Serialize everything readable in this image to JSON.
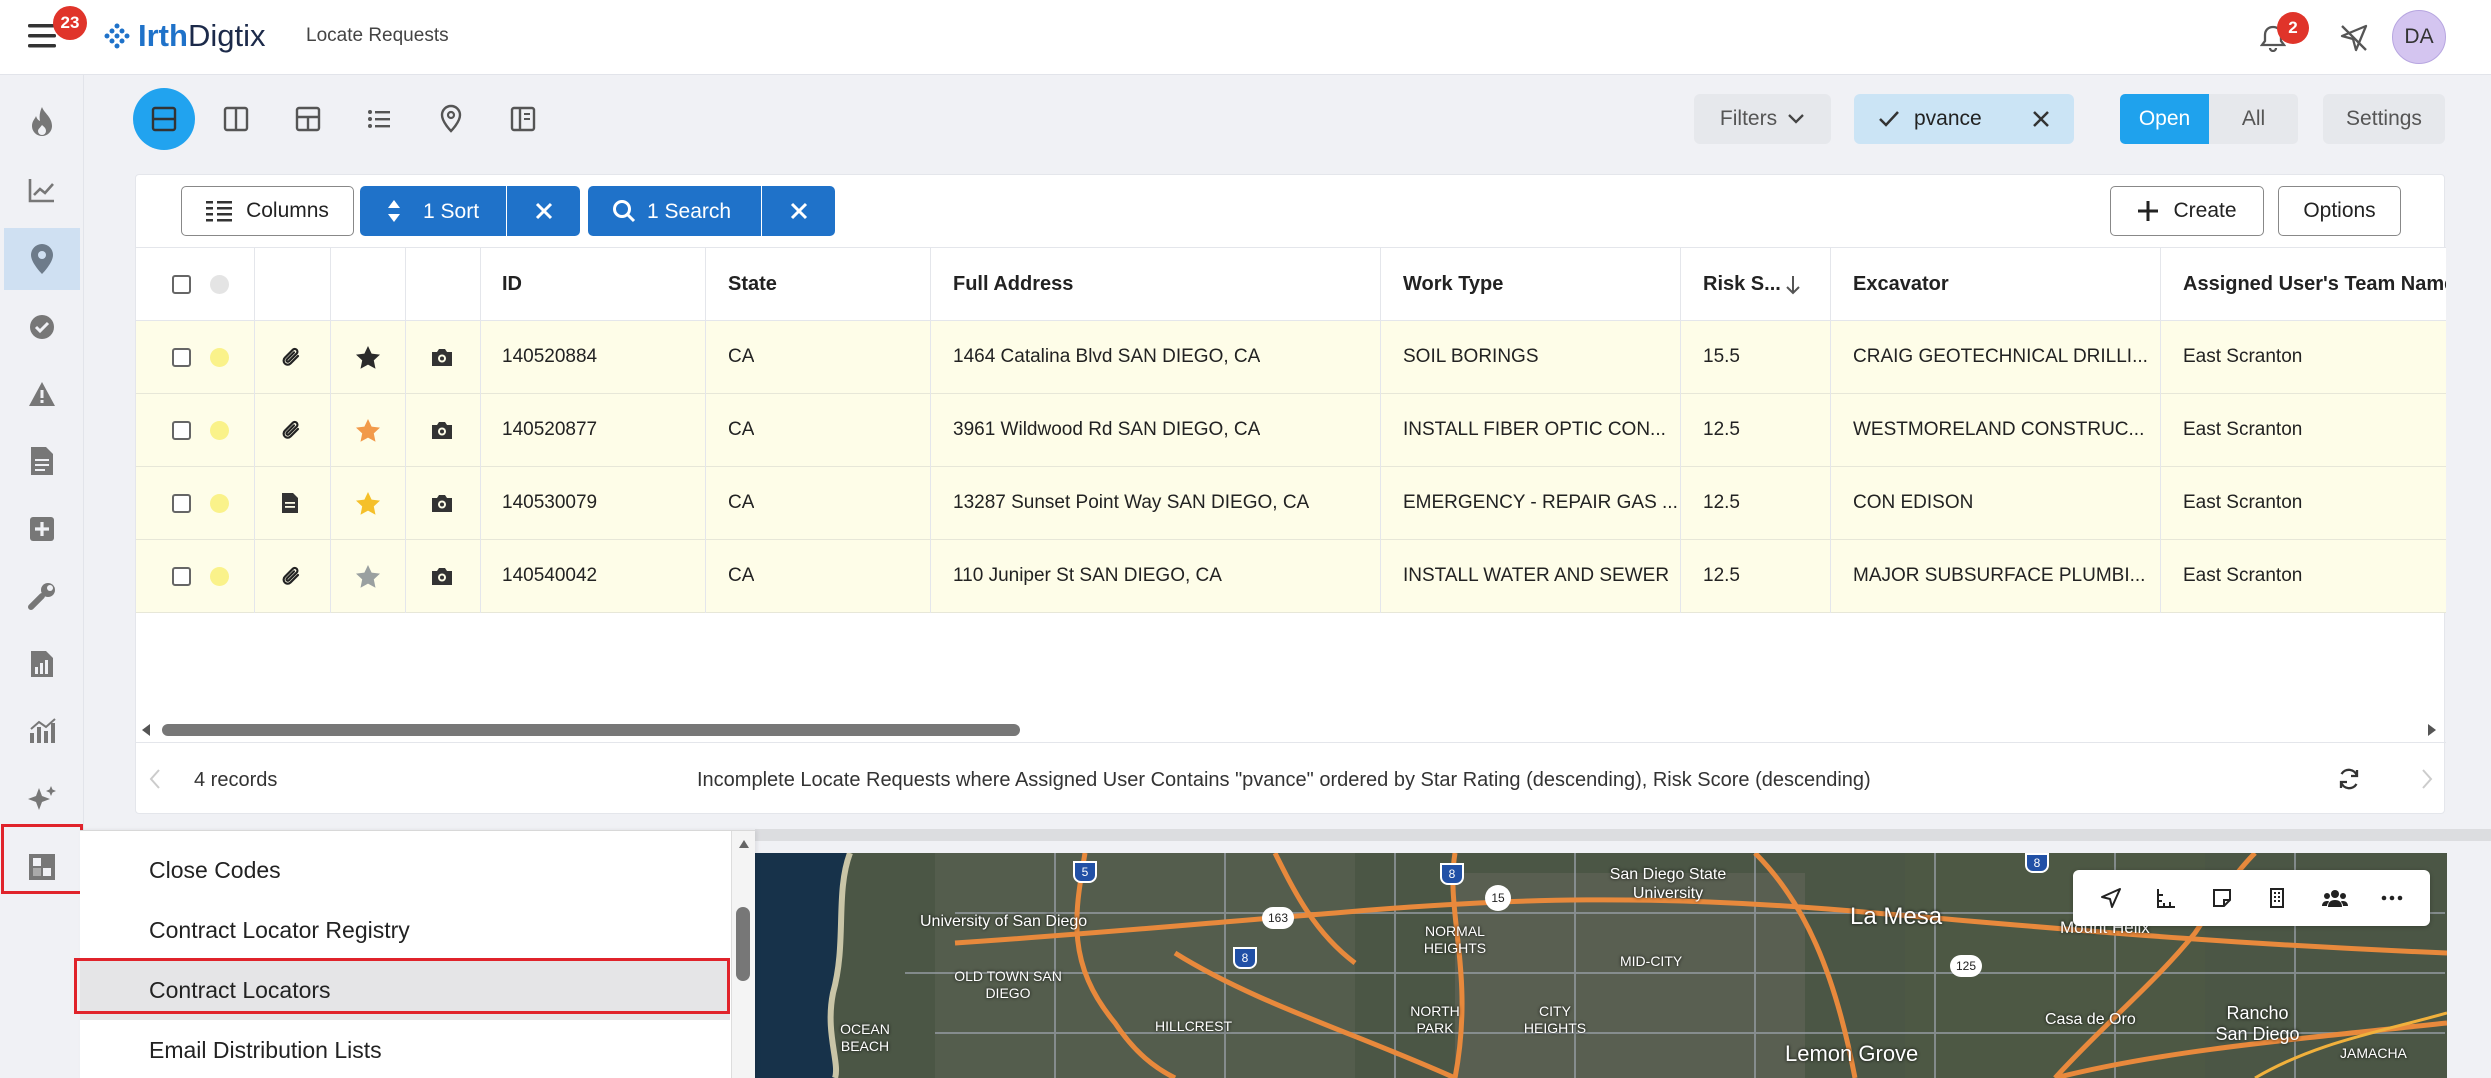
{
  "topbar": {
    "menu_badge": "23",
    "brand_bold": "Irth",
    "brand_rest": "Digtix",
    "app_title": "Locate Requests",
    "notif_badge": "2",
    "avatar_initials": "DA"
  },
  "toolbar": {
    "filters_label": "Filters",
    "chip_label": "pvance",
    "open_label": "Open",
    "all_label": "All",
    "settings_label": "Settings"
  },
  "grid": {
    "columns_label": "Columns",
    "sort_label": "1 Sort",
    "search_label": "1 Search",
    "create_label": "Create",
    "options_label": "Options",
    "headers": [
      "ID",
      "State",
      "Full Address",
      "Work Type",
      "Risk S...",
      "Excavator",
      "Assigned User's Team Name"
    ],
    "rows": [
      {
        "id": "140520884",
        "state": "CA",
        "address": "1464 Catalina Blvd SAN DIEGO, CA",
        "work": "SOIL BORINGS",
        "risk": "15.5",
        "excavator": "CRAIG GEOTECHNICAL DRILLI...",
        "team": "East Scranton",
        "attach": "paperclip",
        "star": "dark"
      },
      {
        "id": "140520877",
        "state": "CA",
        "address": "3961 Wildwood Rd SAN DIEGO, CA",
        "work": "INSTALL FIBER OPTIC CON...",
        "risk": "12.5",
        "excavator": "WESTMORELAND CONSTRUC...",
        "team": "East Scranton",
        "attach": "paperclip",
        "star": "orange"
      },
      {
        "id": "140530079",
        "state": "CA",
        "address": "13287 Sunset Point Way SAN DIEGO, CA",
        "work": "EMERGENCY - REPAIR GAS ...",
        "risk": "12.5",
        "excavator": "CON EDISON",
        "team": "East Scranton",
        "attach": "document",
        "star": "yellow"
      },
      {
        "id": "140540042",
        "state": "CA",
        "address": "110 Juniper St SAN DIEGO, CA",
        "work": "INSTALL WATER AND SEWER",
        "risk": "12.5",
        "excavator": "MAJOR SUBSURFACE PLUMBI...",
        "team": "East Scranton",
        "attach": "paperclip",
        "star": "gray"
      }
    ],
    "records_label": "4 records",
    "summary": "Incomplete Locate Requests where Assigned User Contains \"pvance\" ordered by Star Rating (descending), Risk Score (descending)"
  },
  "menu": {
    "items": [
      "Close Codes",
      "Contract Locator Registry",
      "Contract Locators",
      "Email Distribution Lists"
    ],
    "highlighted_item": "Contract Locators"
  },
  "map": {
    "labels": [
      "University of San Diego",
      "San Diego State University",
      "La Mesa",
      "Mount Helix",
      "NORMAL HEIGHTS",
      "MID-CITY",
      "OLD TOWN SAN DIEGO",
      "NORTH PARK",
      "CITY HEIGHTS",
      "OCEAN BEACH",
      "HILLCREST",
      "Lemon Grove",
      "Casa de Oro",
      "Rancho San Diego",
      "JAMACHA"
    ],
    "highways": [
      "5",
      "8",
      "15",
      "163",
      "8",
      "125",
      "8"
    ]
  },
  "colors": {
    "accent": "#21a3ef",
    "brand_blue": "#1f72c9",
    "row_bg": "#fefde8",
    "highlight_red": "#e0232b"
  },
  "icons": [
    "hamburger-menu-icon",
    "bell-icon",
    "no-location-icon",
    "flame-icon",
    "trend-chart-icon",
    "map-pin-icon",
    "check-circle-icon",
    "warning-icon",
    "document-icon",
    "plus-box-icon",
    "wrench-icon",
    "report-icon",
    "analytics-icon",
    "sparkle-icon",
    "admin-grid-icon"
  ]
}
